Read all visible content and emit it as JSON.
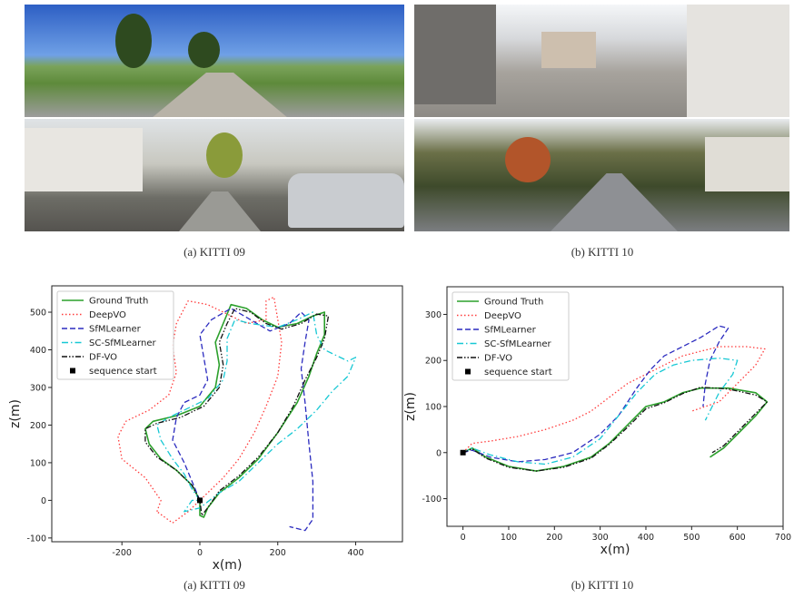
{
  "captions": {
    "top_a": "(a) KITTI 09",
    "top_b": "(b) KITTI 10",
    "bottom_a": "(a) KITTI 09",
    "bottom_b": "(b) KITTI 10"
  },
  "colors": {
    "ground_truth": "#2ca02c",
    "deepvo": "#ff3b3b",
    "sfmlearner": "#2b2bbf",
    "sc_sfmlearner": "#17c8d4",
    "df_vo": "#111111",
    "start": "#000000"
  },
  "chart_data": [
    {
      "type": "line",
      "xlabel": "x(m)",
      "ylabel": "z(m)",
      "xlim": [
        -380,
        520
      ],
      "ylim": [
        -110,
        570
      ],
      "xticks": [
        -200,
        0,
        200,
        400
      ],
      "yticks": [
        -100,
        0,
        100,
        200,
        300,
        400,
        500
      ],
      "legend_position": "top-left",
      "series": [
        {
          "name": "Ground Truth",
          "style": "solid",
          "color": "#2ca02c",
          "points": [
            [
              0,
              0
            ],
            [
              -20,
              40
            ],
            [
              -60,
              80
            ],
            [
              -100,
              110
            ],
            [
              -130,
              150
            ],
            [
              -140,
              190
            ],
            [
              -120,
              210
            ],
            [
              -60,
              225
            ],
            [
              0,
              250
            ],
            [
              40,
              300
            ],
            [
              50,
              360
            ],
            [
              40,
              420
            ],
            [
              60,
              470
            ],
            [
              80,
              520
            ],
            [
              120,
              510
            ],
            [
              160,
              480
            ],
            [
              200,
              460
            ],
            [
              250,
              470
            ],
            [
              290,
              490
            ],
            [
              320,
              500
            ],
            [
              320,
              440
            ],
            [
              300,
              390
            ],
            [
              280,
              330
            ],
            [
              250,
              260
            ],
            [
              200,
              180
            ],
            [
              150,
              110
            ],
            [
              100,
              60
            ],
            [
              50,
              20
            ],
            [
              20,
              -20
            ],
            [
              10,
              -45
            ],
            [
              0,
              -40
            ],
            [
              0,
              0
            ]
          ]
        },
        {
          "name": "DeepVO",
          "style": "dotted",
          "color": "#ff3b3b",
          "points": [
            [
              -110,
              -30
            ],
            [
              -100,
              0
            ],
            [
              -140,
              60
            ],
            [
              -200,
              110
            ],
            [
              -210,
              170
            ],
            [
              -190,
              210
            ],
            [
              -130,
              240
            ],
            [
              -80,
              280
            ],
            [
              -60,
              340
            ],
            [
              -70,
              410
            ],
            [
              -60,
              470
            ],
            [
              -30,
              530
            ],
            [
              20,
              520
            ],
            [
              60,
              500
            ],
            [
              120,
              470
            ],
            [
              170,
              480
            ],
            [
              170,
              530
            ],
            [
              190,
              540
            ],
            [
              200,
              480
            ],
            [
              210,
              420
            ],
            [
              200,
              330
            ],
            [
              170,
              250
            ],
            [
              140,
              180
            ],
            [
              100,
              110
            ],
            [
              60,
              60
            ],
            [
              20,
              20
            ],
            [
              -30,
              -30
            ],
            [
              -70,
              -60
            ],
            [
              -110,
              -30
            ]
          ]
        },
        {
          "name": "SfMLearner",
          "style": "dashed",
          "color": "#2b2bbf",
          "points": [
            [
              0,
              0
            ],
            [
              -20,
              50
            ],
            [
              -40,
              100
            ],
            [
              -70,
              160
            ],
            [
              -60,
              220
            ],
            [
              -40,
              260
            ],
            [
              0,
              280
            ],
            [
              20,
              320
            ],
            [
              10,
              380
            ],
            [
              0,
              440
            ],
            [
              30,
              480
            ],
            [
              80,
              510
            ],
            [
              130,
              480
            ],
            [
              180,
              450
            ],
            [
              230,
              470
            ],
            [
              260,
              500
            ],
            [
              280,
              480
            ],
            [
              270,
              420
            ],
            [
              260,
              350
            ],
            [
              270,
              260
            ],
            [
              280,
              150
            ],
            [
              290,
              50
            ],
            [
              290,
              -50
            ],
            [
              270,
              -80
            ],
            [
              230,
              -70
            ]
          ]
        },
        {
          "name": "SC-SfMLearner",
          "style": "dashdot",
          "color": "#17c8d4",
          "points": [
            [
              0,
              0
            ],
            [
              -20,
              30
            ],
            [
              -40,
              70
            ],
            [
              -70,
              110
            ],
            [
              -100,
              160
            ],
            [
              -110,
              200
            ],
            [
              -80,
              220
            ],
            [
              -40,
              240
            ],
            [
              20,
              270
            ],
            [
              60,
              320
            ],
            [
              70,
              370
            ],
            [
              70,
              430
            ],
            [
              90,
              480
            ],
            [
              130,
              470
            ],
            [
              200,
              460
            ],
            [
              250,
              480
            ],
            [
              290,
              500
            ],
            [
              300,
              440
            ],
            [
              320,
              400
            ],
            [
              380,
              370
            ],
            [
              400,
              380
            ],
            [
              380,
              330
            ],
            [
              340,
              290
            ],
            [
              300,
              240
            ],
            [
              250,
              190
            ],
            [
              200,
              150
            ],
            [
              150,
              100
            ],
            [
              100,
              50
            ],
            [
              50,
              20
            ],
            [
              0,
              -20
            ],
            [
              -40,
              -30
            ],
            [
              -20,
              0
            ],
            [
              0,
              0
            ]
          ]
        },
        {
          "name": "DF-VO",
          "style": "dashdotdot",
          "color": "#111111",
          "points": [
            [
              0,
              0
            ],
            [
              -20,
              40
            ],
            [
              -60,
              80
            ],
            [
              -110,
              115
            ],
            [
              -140,
              155
            ],
            [
              -140,
              190
            ],
            [
              -110,
              205
            ],
            [
              -50,
              220
            ],
            [
              10,
              250
            ],
            [
              50,
              300
            ],
            [
              60,
              360
            ],
            [
              50,
              420
            ],
            [
              70,
              470
            ],
            [
              90,
              510
            ],
            [
              130,
              500
            ],
            [
              170,
              470
            ],
            [
              210,
              455
            ],
            [
              260,
              470
            ],
            [
              300,
              495
            ],
            [
              330,
              490
            ],
            [
              320,
              430
            ],
            [
              300,
              380
            ],
            [
              270,
              320
            ],
            [
              240,
              250
            ],
            [
              200,
              180
            ],
            [
              150,
              115
            ],
            [
              100,
              65
            ],
            [
              50,
              25
            ],
            [
              20,
              -20
            ],
            [
              5,
              -40
            ],
            [
              0,
              0
            ]
          ]
        }
      ],
      "markers": [
        {
          "name": "sequence start",
          "x": 0,
          "y": 0
        }
      ]
    },
    {
      "type": "line",
      "xlabel": "x(m)",
      "ylabel": "z(m)",
      "xlim": [
        -35,
        700
      ],
      "ylim": [
        -160,
        360
      ],
      "xticks": [
        0,
        100,
        200,
        300,
        400,
        500,
        600,
        700
      ],
      "yticks": [
        -100,
        0,
        100,
        200,
        300
      ],
      "legend_position": "top-left",
      "series": [
        {
          "name": "Ground Truth",
          "style": "solid",
          "color": "#2ca02c",
          "points": [
            [
              0,
              0
            ],
            [
              20,
              10
            ],
            [
              50,
              -10
            ],
            [
              100,
              -30
            ],
            [
              160,
              -40
            ],
            [
              220,
              -30
            ],
            [
              280,
              -10
            ],
            [
              320,
              20
            ],
            [
              360,
              60
            ],
            [
              400,
              100
            ],
            [
              440,
              110
            ],
            [
              480,
              130
            ],
            [
              520,
              140
            ],
            [
              580,
              140
            ],
            [
              640,
              130
            ],
            [
              665,
              110
            ],
            [
              640,
              80
            ],
            [
              600,
              40
            ],
            [
              570,
              10
            ],
            [
              540,
              -10
            ]
          ]
        },
        {
          "name": "DeepVO",
          "style": "dotted",
          "color": "#ff3b3b",
          "points": [
            [
              0,
              0
            ],
            [
              20,
              20
            ],
            [
              60,
              25
            ],
            [
              120,
              35
            ],
            [
              180,
              50
            ],
            [
              240,
              70
            ],
            [
              280,
              90
            ],
            [
              320,
              120
            ],
            [
              360,
              150
            ],
            [
              400,
              170
            ],
            [
              440,
              190
            ],
            [
              480,
              210
            ],
            [
              520,
              220
            ],
            [
              560,
              230
            ],
            [
              620,
              230
            ],
            [
              660,
              225
            ],
            [
              640,
              190
            ],
            [
              600,
              150
            ],
            [
              560,
              110
            ],
            [
              500,
              90
            ]
          ]
        },
        {
          "name": "SfMLearner",
          "style": "dashed",
          "color": "#2b2bbf",
          "points": [
            [
              0,
              0
            ],
            [
              20,
              5
            ],
            [
              60,
              -10
            ],
            [
              120,
              -20
            ],
            [
              180,
              -15
            ],
            [
              240,
              0
            ],
            [
              300,
              40
            ],
            [
              340,
              80
            ],
            [
              380,
              140
            ],
            [
              410,
              180
            ],
            [
              440,
              210
            ],
            [
              480,
              230
            ],
            [
              520,
              250
            ],
            [
              560,
              275
            ],
            [
              580,
              270
            ],
            [
              560,
              240
            ],
            [
              540,
              200
            ],
            [
              530,
              150
            ],
            [
              525,
              100
            ]
          ]
        },
        {
          "name": "SC-SfMLearner",
          "style": "dashdot",
          "color": "#17c8d4",
          "points": [
            [
              0,
              0
            ],
            [
              20,
              10
            ],
            [
              60,
              -5
            ],
            [
              120,
              -20
            ],
            [
              180,
              -25
            ],
            [
              240,
              -10
            ],
            [
              300,
              30
            ],
            [
              340,
              80
            ],
            [
              380,
              130
            ],
            [
              420,
              170
            ],
            [
              460,
              190
            ],
            [
              500,
              200
            ],
            [
              560,
              205
            ],
            [
              600,
              200
            ],
            [
              590,
              170
            ],
            [
              560,
              130
            ],
            [
              530,
              70
            ]
          ]
        },
        {
          "name": "DF-VO",
          "style": "dashdotdot",
          "color": "#111111",
          "points": [
            [
              0,
              0
            ],
            [
              20,
              8
            ],
            [
              50,
              -12
            ],
            [
              100,
              -32
            ],
            [
              160,
              -40
            ],
            [
              220,
              -32
            ],
            [
              280,
              -12
            ],
            [
              320,
              18
            ],
            [
              360,
              55
            ],
            [
              400,
              95
            ],
            [
              440,
              108
            ],
            [
              480,
              128
            ],
            [
              520,
              142
            ],
            [
              580,
              138
            ],
            [
              640,
              125
            ],
            [
              665,
              110
            ],
            [
              640,
              85
            ],
            [
              600,
              45
            ],
            [
              570,
              15
            ],
            [
              545,
              0
            ]
          ]
        }
      ],
      "markers": [
        {
          "name": "sequence start",
          "x": 0,
          "y": 0
        }
      ]
    }
  ]
}
